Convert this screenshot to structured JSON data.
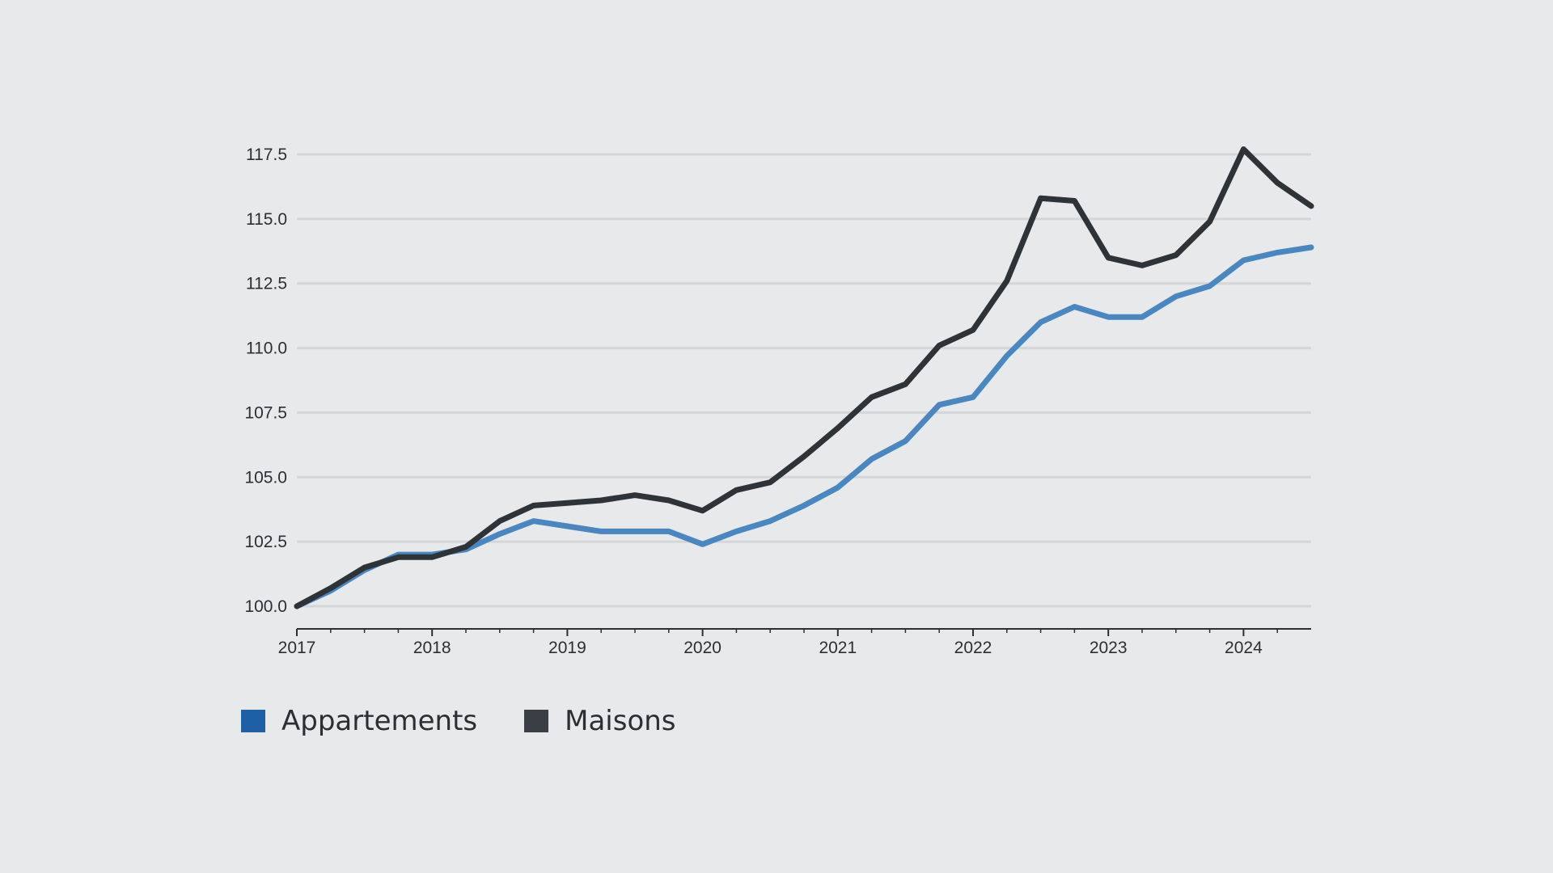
{
  "chart_data": {
    "type": "line",
    "title": "",
    "xlabel": "",
    "ylabel": "",
    "ylim": [
      100,
      117.5
    ],
    "xlim": [
      2017,
      2024.5
    ],
    "yticks": [
      100.0,
      102.5,
      105.0,
      107.5,
      110.0,
      112.5,
      115.0,
      117.5
    ],
    "ytick_labels": [
      "100.0",
      "102.5",
      "105.0",
      "107.5",
      "110.0",
      "112.5",
      "115.0",
      "117.5"
    ],
    "xticks": [
      2017,
      2018,
      2019,
      2020,
      2021,
      2022,
      2023,
      2024
    ],
    "xtick_labels": [
      "2017",
      "2018",
      "2019",
      "2020",
      "2021",
      "2022",
      "2023",
      "2024"
    ],
    "minor_xticks": [
      2017.25,
      2017.5,
      2017.75,
      2018.25,
      2018.5,
      2018.75,
      2019.25,
      2019.5,
      2019.75,
      2020.25,
      2020.5,
      2020.75,
      2021.25,
      2021.5,
      2021.75,
      2022.25,
      2022.5,
      2022.75,
      2023.25,
      2023.5,
      2023.75,
      2024.25
    ],
    "grid": true,
    "x": [
      2017.0,
      2017.25,
      2017.5,
      2017.75,
      2018.0,
      2018.25,
      2018.5,
      2018.75,
      2019.0,
      2019.25,
      2019.5,
      2019.75,
      2020.0,
      2020.25,
      2020.5,
      2020.75,
      2021.0,
      2021.25,
      2021.5,
      2021.75,
      2022.0,
      2022.25,
      2022.5,
      2022.75,
      2023.0,
      2023.25,
      2023.5,
      2023.75,
      2024.0,
      2024.25,
      2024.5
    ],
    "series": [
      {
        "name": "Appartements",
        "color": "#4a86c0",
        "values": [
          100.0,
          100.6,
          101.4,
          102.0,
          102.0,
          102.2,
          102.8,
          103.3,
          103.1,
          102.9,
          102.9,
          102.9,
          102.4,
          102.9,
          103.3,
          103.9,
          104.6,
          105.7,
          106.4,
          107.8,
          108.1,
          109.7,
          111.0,
          111.6,
          111.2,
          111.2,
          112.0,
          112.4,
          113.4,
          113.7,
          113.9
        ]
      },
      {
        "name": "Maisons",
        "color": "#2e3338",
        "values": [
          100.0,
          100.7,
          101.5,
          101.9,
          101.9,
          102.3,
          103.3,
          103.9,
          104.0,
          104.1,
          104.3,
          104.1,
          103.7,
          104.5,
          104.8,
          105.8,
          106.9,
          108.1,
          108.6,
          110.1,
          110.7,
          112.6,
          115.8,
          115.7,
          113.5,
          113.2,
          113.6,
          114.9,
          117.7,
          116.4,
          115.5
        ]
      }
    ]
  },
  "legend": {
    "items": [
      {
        "label": "Appartements",
        "swatch_color": "#1f5fa6"
      },
      {
        "label": "Maisons",
        "swatch_color": "#3a3f46"
      }
    ]
  }
}
